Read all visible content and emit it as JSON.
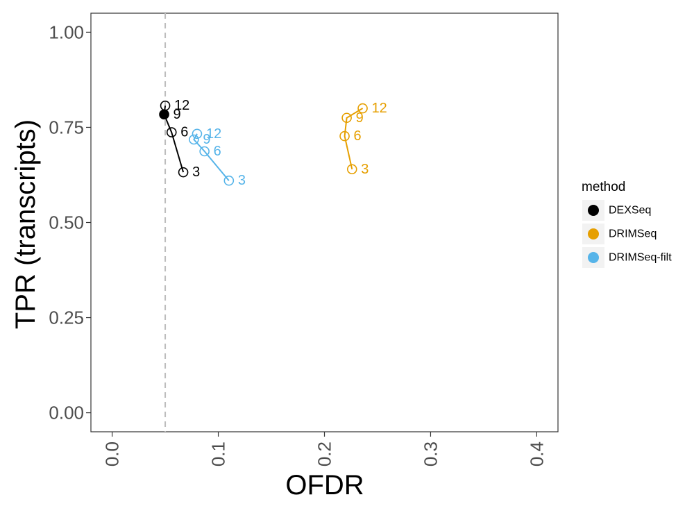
{
  "chart_data": {
    "type": "scatter",
    "xlabel": "OFDR",
    "ylabel": "TPR (transcripts)",
    "xlim": [
      -0.02,
      0.42
    ],
    "ylim": [
      -0.05,
      1.05
    ],
    "x_ticks": [
      0.0,
      0.1,
      0.2,
      0.3,
      0.4
    ],
    "x_tick_labels": [
      "0.0",
      "0.1",
      "0.2",
      "0.3",
      "0.4"
    ],
    "y_ticks": [
      0.0,
      0.25,
      0.5,
      0.75,
      1.0
    ],
    "y_tick_labels": [
      "0.00",
      "0.25",
      "0.50",
      "0.75",
      "1.00"
    ],
    "reference_line": {
      "x": 0.05,
      "style": "dashed",
      "color": "#bdbdbd"
    },
    "grid": false,
    "legend": {
      "title": "method",
      "placement": "right"
    },
    "series": [
      {
        "name": "DEXSeq",
        "color": "#000000",
        "points": [
          {
            "label": "3",
            "x": 0.067,
            "y": 0.632,
            "filled": false
          },
          {
            "label": "6",
            "x": 0.056,
            "y": 0.737,
            "filled": false
          },
          {
            "label": "9",
            "x": 0.049,
            "y": 0.784,
            "filled": true
          },
          {
            "label": "12",
            "x": 0.05,
            "y": 0.807,
            "filled": false
          }
        ]
      },
      {
        "name": "DRIMSeq",
        "color": "#E69F00",
        "points": [
          {
            "label": "3",
            "x": 0.226,
            "y": 0.64,
            "filled": false
          },
          {
            "label": "6",
            "x": 0.219,
            "y": 0.727,
            "filled": false
          },
          {
            "label": "9",
            "x": 0.221,
            "y": 0.775,
            "filled": false
          },
          {
            "label": "12",
            "x": 0.236,
            "y": 0.8,
            "filled": false
          }
        ]
      },
      {
        "name": "DRIMSeq-filt",
        "color": "#56B4E9",
        "points": [
          {
            "label": "3",
            "x": 0.11,
            "y": 0.61,
            "filled": false
          },
          {
            "label": "6",
            "x": 0.087,
            "y": 0.687,
            "filled": false
          },
          {
            "label": "9",
            "x": 0.077,
            "y": 0.718,
            "filled": false
          },
          {
            "label": "12",
            "x": 0.08,
            "y": 0.733,
            "filled": false
          }
        ]
      }
    ]
  }
}
